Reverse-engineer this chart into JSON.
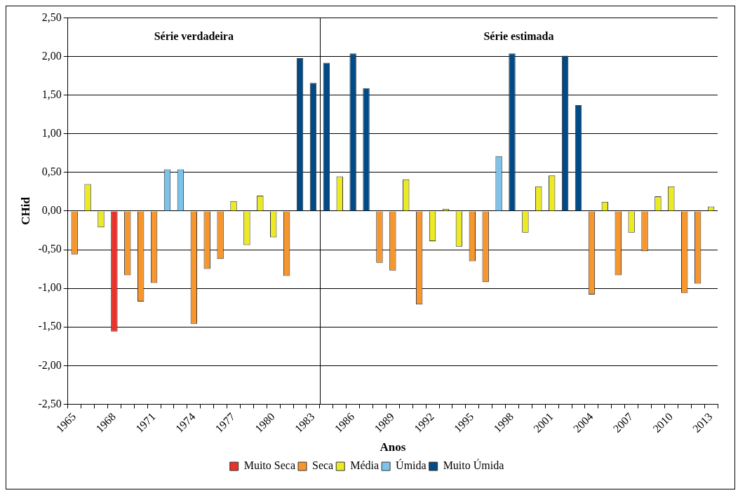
{
  "chart_data": {
    "type": "bar",
    "xlabel": "Anos",
    "ylabel": "CHid",
    "categories": [
      "1965",
      null,
      null,
      "1968",
      null,
      null,
      "1971",
      null,
      null,
      "1974",
      null,
      null,
      "1977",
      null,
      null,
      "1980",
      null,
      null,
      "1983",
      null,
      null,
      "1986",
      null,
      null,
      "1989",
      null,
      null,
      "1992",
      null,
      null,
      "1995",
      null,
      null,
      "1998",
      null,
      null,
      "2001",
      null,
      null,
      "2004",
      null,
      null,
      "2007",
      null,
      null,
      "2010",
      null,
      null,
      "2013"
    ],
    "series": [
      {
        "name": "Muito Seca",
        "color": "#e8322a",
        "values": [
          null,
          null,
          null,
          -1.56,
          null,
          null,
          null,
          null,
          null,
          null,
          null,
          null,
          null,
          null,
          null,
          null,
          null,
          null,
          null,
          null,
          null,
          null,
          null,
          null,
          null,
          null,
          null,
          null,
          null,
          null,
          null,
          null,
          null,
          null,
          null,
          null,
          null,
          null,
          null,
          null,
          null,
          null,
          null,
          null,
          null,
          null,
          null,
          null,
          null
        ]
      },
      {
        "name": "Seca",
        "color": "#f7962c",
        "values": [
          -0.56,
          null,
          null,
          null,
          -0.83,
          -1.17,
          -0.93,
          null,
          null,
          -1.46,
          -0.75,
          -0.62,
          null,
          null,
          null,
          null,
          -0.84,
          null,
          null,
          null,
          null,
          null,
          null,
          -0.67,
          -0.77,
          null,
          -1.21,
          null,
          null,
          null,
          -0.65,
          -0.92,
          null,
          null,
          null,
          null,
          null,
          null,
          null,
          -1.08,
          null,
          -0.83,
          null,
          -0.52,
          null,
          null,
          -1.06,
          -0.94,
          null
        ]
      },
      {
        "name": "Média",
        "color": "#ecea22",
        "values": [
          null,
          0.35,
          -0.21,
          null,
          null,
          null,
          null,
          null,
          null,
          null,
          null,
          null,
          0.13,
          -0.44,
          0.2,
          -0.34,
          null,
          null,
          null,
          null,
          0.45,
          null,
          null,
          null,
          null,
          0.41,
          null,
          -0.39,
          0.03,
          -0.46,
          null,
          null,
          null,
          null,
          -0.28,
          0.32,
          0.46,
          null,
          null,
          null,
          0.12,
          null,
          -0.28,
          null,
          0.19,
          0.32,
          null,
          null,
          0.06
        ]
      },
      {
        "name": "Úmida",
        "color": "#7bc3ec",
        "values": [
          null,
          null,
          null,
          null,
          null,
          null,
          null,
          0.54,
          0.54,
          null,
          null,
          null,
          null,
          null,
          null,
          null,
          null,
          null,
          null,
          null,
          null,
          null,
          null,
          null,
          null,
          null,
          null,
          null,
          null,
          null,
          null,
          null,
          0.71,
          null,
          null,
          null,
          null,
          null,
          null,
          null,
          null,
          null,
          null,
          null,
          null,
          null,
          null,
          null,
          null
        ]
      },
      {
        "name": "Muito Úmida",
        "color": "#004a87",
        "values": [
          null,
          null,
          null,
          null,
          null,
          null,
          null,
          null,
          null,
          null,
          null,
          null,
          null,
          null,
          null,
          null,
          null,
          1.98,
          1.66,
          1.92,
          null,
          2.04,
          1.59,
          null,
          null,
          null,
          null,
          null,
          null,
          null,
          null,
          null,
          null,
          2.04,
          null,
          null,
          null,
          2.01,
          1.37,
          null,
          null,
          null,
          null,
          null,
          null,
          null,
          null,
          null,
          null
        ]
      }
    ],
    "ylim": [
      -2.5,
      2.5
    ],
    "yticks": [
      {
        "value": -2.5,
        "label": "-2,50"
      },
      {
        "value": -2,
        "label": "-2,00"
      },
      {
        "value": -1.5,
        "label": "-1,50"
      },
      {
        "value": -1,
        "label": "-1,00"
      },
      {
        "value": -0.5,
        "label": "-0,50"
      },
      {
        "value": 0,
        "label": "0,00"
      },
      {
        "value": 0.5,
        "label": "0,50"
      },
      {
        "value": 1,
        "label": "1,00"
      },
      {
        "value": 1.5,
        "label": "1,50"
      },
      {
        "value": 2,
        "label": "2,00"
      },
      {
        "value": 2.5,
        "label": "2,50"
      }
    ],
    "annotations": [
      "Série verdadeira",
      "Série estimada"
    ],
    "grid": "y",
    "legend": "bottom"
  }
}
